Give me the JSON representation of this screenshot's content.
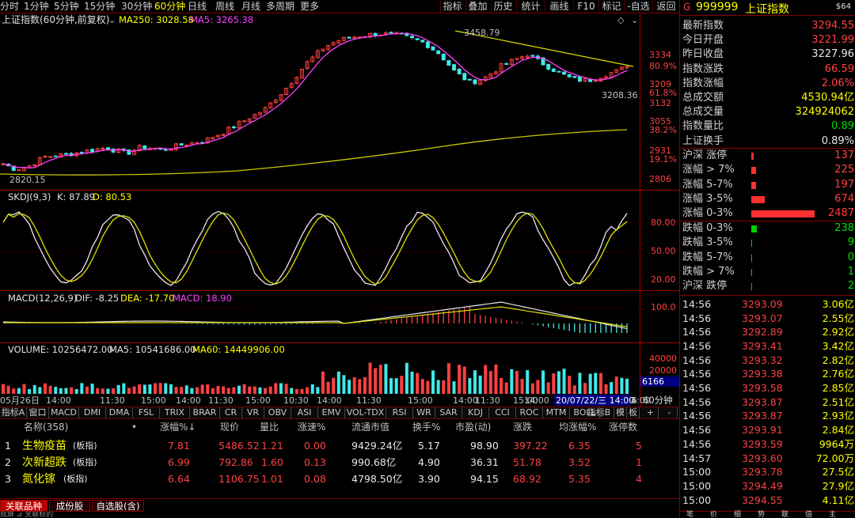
{
  "periods": [
    "分时",
    "1分钟",
    "5分钟",
    "15分钟",
    "30分钟",
    "60分钟",
    "日线",
    "周线",
    "月线",
    "多周期",
    "更多"
  ],
  "period_active": "60分钟",
  "toolbar": [
    "指标",
    "叠加",
    "历史",
    "统计",
    "画线",
    "F10",
    "标记",
    "-自选",
    "返回"
  ],
  "chart": {
    "title": "上证指数(60分钟,前复权)",
    "ma250_label": "MA250: 3028.58",
    "ma5_label": "MA5: 3265.38",
    "high_label": "3458.79",
    "low_label": "2820.15",
    "last_low_label": "3208.36",
    "price_axis": [
      "3334",
      "80.9%",
      "3209",
      "61.8%",
      "3132",
      "3055",
      "38.2%",
      "2931",
      "19.1%",
      "2806"
    ],
    "kdj_label": "SKDJ(9,3)",
    "kdj_k": "K: 87.89",
    "kdj_d": "D: 80.53",
    "kdj_axis": [
      "80.00",
      "50.00",
      "20.00"
    ],
    "macd_label": "MACD(12,26,9)",
    "macd_dif": "DIF: -8.25",
    "macd_dea": "DEA: -17.70",
    "macd_val": "MACD: 18.90",
    "macd_axis": [
      "100.0"
    ],
    "vol_label": "VOLUME: 10256472.00",
    "vol_ma5": "MA5: 10541686.00",
    "vol_ma60": "MA60: 14449906.00",
    "vol_axis": [
      "40000",
      "20000",
      "6166"
    ],
    "time_axis": [
      "05月26日",
      "14:00",
      "11:30",
      "15:00",
      "14:00",
      "11:30",
      "15:00",
      "10:30",
      "14:00",
      "11:30",
      "15:00",
      "14:00",
      "11:30",
      "15:00",
      "14:00",
      "11:30",
      "15:00",
      "14:00",
      "5"
    ],
    "cursor_time": "20/07/22/三 14:00",
    "period_tag": "60分钟"
  },
  "indicators": [
    "指标A",
    "窗口",
    "MACD",
    "DMI",
    "DMA",
    "FSL",
    "TRIX",
    "BRAR",
    "CR",
    "VR",
    "OBV",
    "ASI",
    "EMV",
    "VOL-TDX",
    "RSI",
    "WR",
    "SAR",
    "KDJ",
    "CCI",
    "ROC",
    "MTM",
    "BOLL"
  ],
  "ind_right": [
    "指标B",
    "模",
    "板",
    "+",
    "-"
  ],
  "table": {
    "headers": [
      "名称(358)",
      "•",
      "涨幅%↓",
      "现价",
      "量比",
      "涨速%",
      "流通市值",
      "换手%",
      "市盈(动)",
      "涨跌",
      "均涨幅%",
      "涨停数"
    ],
    "rows": [
      {
        "idx": "1",
        "name": "生物疫苗",
        "tag": "(板指)",
        "chg": "7.81",
        "price": "5486.52",
        "vr": "1.21",
        "speed": "0.00",
        "cap": "9429.24亿",
        "turn": "5.17",
        "pe": "98.90",
        "diff": "397.22",
        "avg": "6.35",
        "lim": "5"
      },
      {
        "idx": "2",
        "name": "次新超跌",
        "tag": "(板指)",
        "chg": "6.99",
        "price": "792.86",
        "vr": "1.60",
        "speed": "0.13",
        "cap": "990.68亿",
        "turn": "4.90",
        "pe": "36.31",
        "diff": "51.78",
        "avg": "3.52",
        "lim": "1"
      },
      {
        "idx": "3",
        "name": "氮化镓",
        "tag": "(板指)",
        "chg": "6.64",
        "price": "1106.75",
        "vr": "1.01",
        "speed": "0.08",
        "cap": "4798.50亿",
        "turn": "3.90",
        "pe": "94.15",
        "diff": "68.92",
        "avg": "5.35",
        "lim": "4"
      }
    ]
  },
  "bottom_tabs": [
    "关联品种",
    "成份股",
    "自选股(含)"
  ],
  "bottom_strip": "成屏  ⊿  关联标的",
  "right": {
    "code": "999999",
    "name": "上证指数",
    "badge": "$64",
    "mark": "G",
    "quote": [
      {
        "label": "最新指数",
        "value": "3294.55",
        "color": "#ff4040"
      },
      {
        "label": "今日开盘",
        "value": "3221.99",
        "color": "#ff4040"
      },
      {
        "label": "昨日收盘",
        "value": "3227.96",
        "color": "#e8e8e8"
      },
      {
        "label": "指数涨跌",
        "value": "66.59",
        "color": "#ff4040"
      },
      {
        "label": "指数涨幅",
        "value": "2.06%",
        "color": "#ff4040"
      },
      {
        "label": "总成交额",
        "value": "4530.94亿",
        "color": "#ffff00"
      },
      {
        "label": "总成交量",
        "value": "324924062",
        "color": "#ffff00"
      },
      {
        "label": "指数量比",
        "value": "0.89",
        "color": "#00e000"
      },
      {
        "label": "上证换手",
        "value": "0.89%",
        "color": "#e8e8e8"
      }
    ],
    "breadth_up": [
      {
        "label": "沪深 涨停",
        "value": "137",
        "bar": 3
      },
      {
        "label": "涨幅 > 7%",
        "value": "225",
        "bar": 6
      },
      {
        "label": "涨幅 5-7%",
        "value": "197",
        "bar": 6
      },
      {
        "label": "涨幅 3-5%",
        "value": "674",
        "bar": 17
      },
      {
        "label": "涨幅 0-3%",
        "value": "2487",
        "bar": 80
      }
    ],
    "breadth_dn": [
      {
        "label": "跌幅 0-3%",
        "value": "238",
        "bar": 7
      },
      {
        "label": "跌幅 3-5%",
        "value": "9",
        "bar": 1
      },
      {
        "label": "跌幅 5-7%",
        "value": "0",
        "bar": 1
      },
      {
        "label": "跌幅 > 7%",
        "value": "1",
        "bar": 1
      },
      {
        "label": "沪深 跌停",
        "value": "2",
        "bar": 1
      }
    ],
    "ticks": [
      {
        "t": "14:56",
        "p": "3293.09",
        "v": "3.06亿"
      },
      {
        "t": "14:56",
        "p": "3293.07",
        "v": "2.55亿"
      },
      {
        "t": "14:56",
        "p": "3292.89",
        "v": "2.92亿"
      },
      {
        "t": "14:56",
        "p": "3293.41",
        "v": "3.42亿"
      },
      {
        "t": "14:56",
        "p": "3293.32",
        "v": "2.82亿"
      },
      {
        "t": "14:56",
        "p": "3293.38",
        "v": "2.76亿"
      },
      {
        "t": "14:56",
        "p": "3293.58",
        "v": "2.85亿"
      },
      {
        "t": "14:56",
        "p": "3293.87",
        "v": "2.51亿"
      },
      {
        "t": "14:56",
        "p": "3293.87",
        "v": "2.93亿"
      },
      {
        "t": "14:56",
        "p": "3293.91",
        "v": "2.84亿"
      },
      {
        "t": "14:56",
        "p": "3293.59",
        "v": "9964万"
      },
      {
        "t": "14:57",
        "p": "3293.60",
        "v": "72.00万"
      },
      {
        "t": "15:00",
        "p": "3293.78",
        "v": "27.5亿"
      },
      {
        "t": "15:00",
        "p": "3294.49",
        "v": "27.9亿"
      },
      {
        "t": "15:00",
        "p": "3294.55",
        "v": "4.11亿"
      }
    ],
    "bottom_tabs": [
      "笔",
      "价",
      "细",
      "势",
      "联",
      "值",
      "主"
    ]
  }
}
